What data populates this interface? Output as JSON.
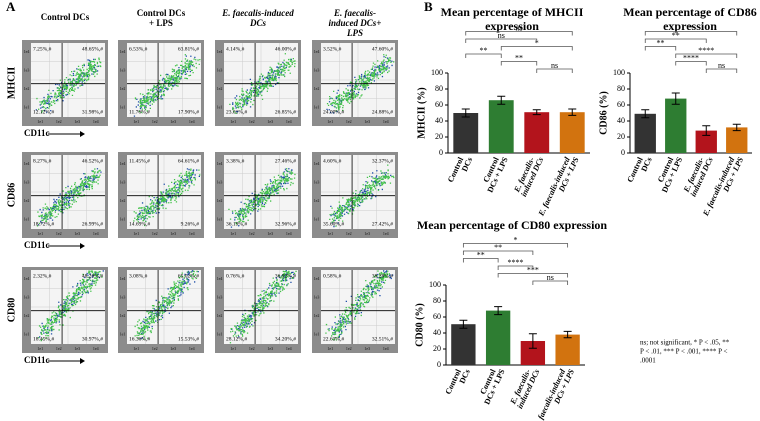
{
  "panel_a": {
    "label": "A",
    "headers": [
      [
        "Control DCs"
      ],
      [
        "Control  DCs",
        "+ LPS"
      ],
      [
        "E. faecalis-induced",
        "DCs"
      ],
      [
        "E. faecalis-",
        "induced DCs+",
        "LPS"
      ]
    ],
    "rows": [
      "MHCII",
      "CD86",
      "CD80"
    ],
    "x_marker": "CD11c",
    "axis_ticks": [
      "1e1",
      "1e2",
      "1e3",
      "1e4"
    ],
    "quadrants": [
      [
        [
          "7.25%,#",
          "48.65%,#",
          "12.12%,#",
          "31.98%,#"
        ],
        [
          "6.53%,#",
          "63.81%,#",
          "11.76%,#",
          "17.90%,#"
        ],
        [
          "4.14%,#",
          "46.00%,#",
          "23.01%,#",
          "26.85%,#"
        ],
        [
          "3.52%,#",
          "47.60%,#",
          "24.00%,#",
          "24.88%,#"
        ]
      ],
      [
        [
          "8.27%,#",
          "46.52%,#",
          "18.72%,#",
          "26.99%,#"
        ],
        [
          "11.45%,#",
          "64.61%,#",
          "14.69%,#",
          "9.26%,#"
        ],
        [
          "3.38%,#",
          "27.46%,#",
          "36.19%,#",
          "32.96%,#"
        ],
        [
          "4.60%,#",
          "32.37%,#",
          "35.60%,#",
          "27.42%,#"
        ]
      ],
      [
        [
          "2.32%,#",
          "48.26%,#",
          "18.45%,#",
          "30.97%,#"
        ],
        [
          "3.08%,#",
          "65.02%,#",
          "16.36%,#",
          "15.53%,#"
        ],
        [
          "0.76%,#",
          "36.92%,#",
          "28.12%,#",
          "34.20%,#"
        ],
        [
          "0.58%,#",
          "38.28%,#",
          "22.63%,#",
          "32.51%,#"
        ]
      ]
    ]
  },
  "panel_b_label": "B",
  "chart_data": [
    {
      "type": "bar",
      "title": [
        "Mean percentage of MHCII",
        "expression"
      ],
      "y_label": "MHCII (%)",
      "categories": [
        [
          "Control",
          "DCs"
        ],
        [
          "Control",
          "DCs + LPS"
        ],
        [
          "E. faecalis-",
          "induced DCs"
        ],
        [
          "E. faecalis-induced",
          "DCs + LPS"
        ]
      ],
      "values": [
        50,
        66,
        51,
        51
      ],
      "errors": [
        5,
        5,
        3,
        4
      ],
      "colors": [
        "#333333",
        "#2e7d32",
        "#b3141c",
        "#d2730f"
      ],
      "ylim": [
        0,
        100
      ],
      "yticks": [
        0,
        20,
        40,
        60,
        80,
        100
      ],
      "significance": [
        {
          "pair": [
            2,
            3
          ],
          "label": "ns"
        },
        {
          "pair": [
            1,
            2
          ],
          "label": "**"
        },
        {
          "pair": [
            0,
            1
          ],
          "label": "**"
        },
        {
          "pair": [
            1,
            3
          ],
          "label": "*"
        },
        {
          "pair": [
            0,
            2
          ],
          "label": "ns"
        },
        {
          "pair": [
            0,
            3
          ],
          "label": "ns"
        }
      ]
    },
    {
      "type": "bar",
      "title": [
        "Mean percentage of CD86",
        "expression"
      ],
      "y_label": "CD86 (%)",
      "categories": [
        [
          "Control",
          "DCs"
        ],
        [
          "Control",
          "DCs + LPS"
        ],
        [
          "E. faecalis-",
          "induced DCs"
        ],
        [
          "E. faecalis-induced",
          "DCs + LPS"
        ]
      ],
      "values": [
        49,
        68,
        28,
        32
      ],
      "errors": [
        5,
        7,
        6,
        4
      ],
      "colors": [
        "#333333",
        "#2e7d32",
        "#b3141c",
        "#d2730f"
      ],
      "ylim": [
        0,
        100
      ],
      "yticks": [
        0,
        20,
        40,
        60,
        80,
        100
      ],
      "significance": [
        {
          "pair": [
            2,
            3
          ],
          "label": "ns"
        },
        {
          "pair": [
            1,
            2
          ],
          "label": "****"
        },
        {
          "pair": [
            1,
            3
          ],
          "label": "****"
        },
        {
          "pair": [
            0,
            1
          ],
          "label": "**"
        },
        {
          "pair": [
            0,
            2
          ],
          "label": "**"
        },
        {
          "pair": [
            0,
            3
          ],
          "label": "*"
        }
      ]
    },
    {
      "type": "bar",
      "title": [
        "Mean percentage of CD80 expression"
      ],
      "y_label": "CD80 (%)",
      "categories": [
        [
          "Control",
          "DCs"
        ],
        [
          "Control",
          "DCs + LPS"
        ],
        [
          "E. faecalis-",
          "induced DCs"
        ],
        [
          "E. faecalis-induced",
          "DCs + LPS"
        ]
      ],
      "values": [
        51,
        68,
        30,
        38
      ],
      "errors": [
        5,
        5,
        9,
        4
      ],
      "colors": [
        "#333333",
        "#2e7d32",
        "#b3141c",
        "#d2730f"
      ],
      "ylim": [
        0,
        100
      ],
      "yticks": [
        0,
        20,
        40,
        60,
        80,
        100
      ],
      "significance": [
        {
          "pair": [
            2,
            3
          ],
          "label": "ns"
        },
        {
          "pair": [
            1,
            3
          ],
          "label": "***"
        },
        {
          "pair": [
            1,
            2
          ],
          "label": "****"
        },
        {
          "pair": [
            0,
            1
          ],
          "label": "**"
        },
        {
          "pair": [
            0,
            2
          ],
          "label": "**"
        },
        {
          "pair": [
            0,
            3
          ],
          "label": "*"
        }
      ]
    }
  ],
  "footnote": [
    "ns; not significant, * P < .05, **",
    "P < .01, *** P < .001, **** P <",
    ".0001"
  ]
}
